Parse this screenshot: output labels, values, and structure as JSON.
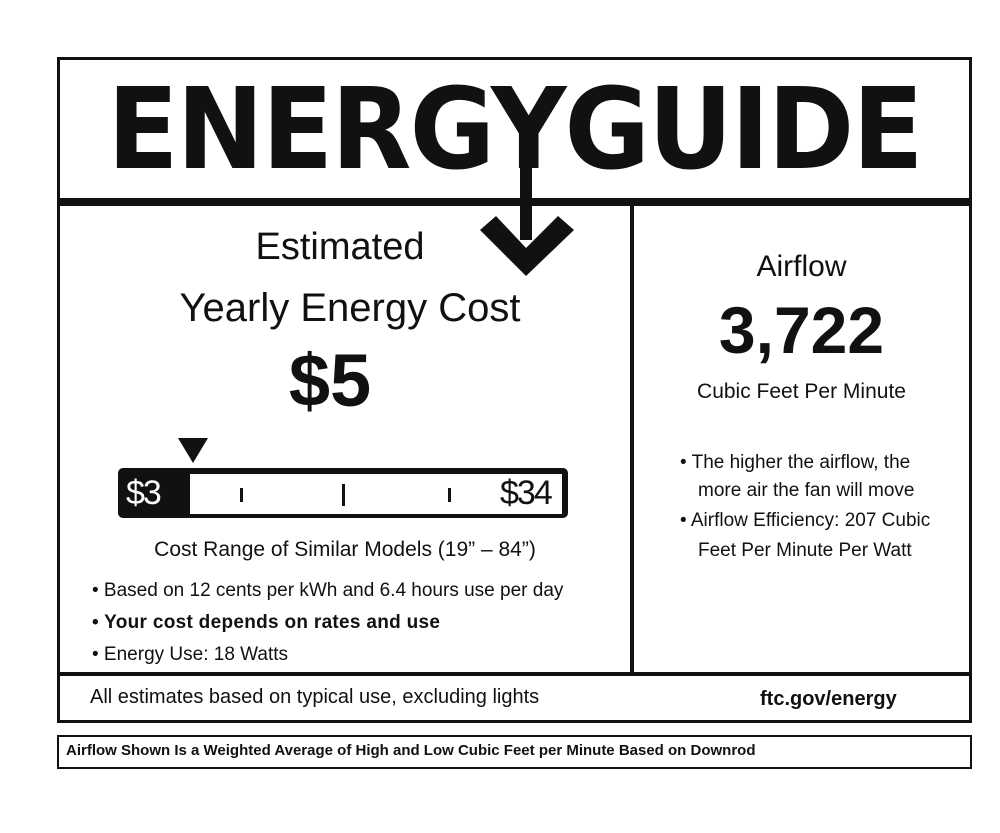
{
  "header": {
    "title": "ENERGYGUIDE"
  },
  "cost": {
    "heading_line1": "Estimated",
    "heading_line2": "Yearly Energy Cost",
    "value": "$5",
    "range_min": "$3",
    "range_max": "$34",
    "range_caption": "Cost Range of Similar Models (19” – 84”)",
    "bullets": [
      "• Based on 12 cents per kWh and 6.4 hours use per day",
      "• Your cost depends on rates and use",
      "• Energy Use:  18 Watts"
    ]
  },
  "airflow": {
    "heading": "Airflow",
    "value": "3,722",
    "unit": "Cubic Feet Per Minute",
    "bullets": [
      "• The higher the airflow, the",
      "more air the fan will move",
      "• Airflow Efficiency: 207 Cubic",
      "Feet Per Minute Per Watt"
    ]
  },
  "footer": {
    "text": "All estimates based on typical use, excluding lights",
    "link": "ftc.gov/energy"
  },
  "note": "Airflow Shown Is a Weighted Average of High and Low Cubic Feet per Minute Based on Downrod"
}
